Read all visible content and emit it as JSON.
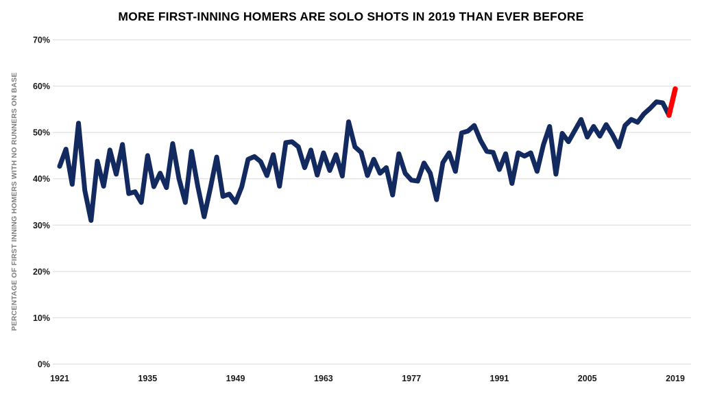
{
  "title": "MORE FIRST-INNING HOMERS ARE SOLO SHOTS IN 2019 THAN EVER BEFORE",
  "colors": {
    "line": "#132a60",
    "highlight": "#fe0000",
    "grid": "#d9d9d9",
    "tick": "#1a1a1a",
    "axis_label": "#7f7f7f",
    "background": "#ffffff"
  },
  "chart_data": {
    "type": "line",
    "title": "MORE FIRST-INNING HOMERS ARE SOLO SHOTS IN 2019 THAN EVER BEFORE",
    "xlabel": "",
    "ylabel": "PERCENTAGE OF FIRST INNING HOMERS WITH NO RUNNERS ON BASE",
    "ylim": [
      0,
      70
    ],
    "grid": "horizontal-only",
    "legend": "none",
    "x_start": 1921,
    "x_end": 2019,
    "x_tick_labels": [
      "1921",
      "1935",
      "1949",
      "1963",
      "1977",
      "1991",
      "2005",
      "2019"
    ],
    "y_tick_labels": [
      "0%",
      "10%",
      "20%",
      "30%",
      "40%",
      "50%",
      "60%",
      "70%"
    ],
    "y_tick_values": [
      0,
      10,
      20,
      30,
      40,
      50,
      60,
      70
    ],
    "highlight_segment": {
      "start_year": 2018,
      "end_year": 2019
    },
    "series": [
      {
        "name": "Percentage of first inning homers with no runners on base",
        "values": [
          42.7,
          46.4,
          38.8,
          52.0,
          37.5,
          31.0,
          43.8,
          38.4,
          46.2,
          41.0,
          47.4,
          36.8,
          37.2,
          34.9,
          45.0,
          38.3,
          41.2,
          38.1,
          47.6,
          40.0,
          34.9,
          45.9,
          38.3,
          31.8,
          38.0,
          44.7,
          36.2,
          36.7,
          34.9,
          38.3,
          44.2,
          44.8,
          43.7,
          40.7,
          45.2,
          38.4,
          47.8,
          48.0,
          46.9,
          42.4,
          46.2,
          40.8,
          45.6,
          41.8,
          45.2,
          40.6,
          52.3,
          46.9,
          45.7,
          40.7,
          44.2,
          41.2,
          42.4,
          36.5,
          45.4,
          41.2,
          39.7,
          39.5,
          43.4,
          41.2,
          35.5,
          43.5,
          45.6,
          41.6,
          49.9,
          50.3,
          51.5,
          48.3,
          45.9,
          45.7,
          42.0,
          45.4,
          39.0,
          45.6,
          44.9,
          45.6,
          41.6,
          47.3,
          51.3,
          41.0,
          49.8,
          48.0,
          50.4,
          52.8,
          49.0,
          51.3,
          49.2,
          51.7,
          49.5,
          46.9,
          51.5,
          52.8,
          52.2,
          54.0,
          55.2,
          56.6,
          56.4,
          53.7,
          59.4
        ]
      }
    ]
  }
}
